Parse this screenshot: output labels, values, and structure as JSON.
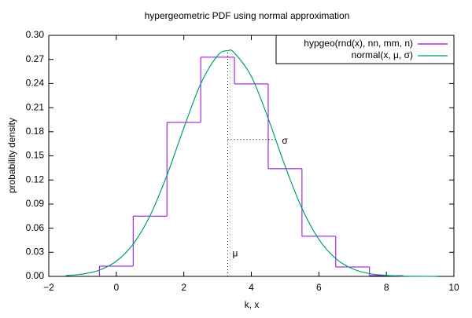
{
  "chart_data": {
    "type": "line",
    "title": "hypergeometric PDF using normal approximation",
    "x_label": "k, x",
    "y_label": "probability density",
    "xlim": [
      -2,
      10
    ],
    "xticks": [
      {
        "value": -2,
        "label": "−2"
      },
      0,
      2,
      4,
      6,
      8,
      10
    ],
    "ylim": [
      0,
      0.3
    ],
    "yticks": [
      {
        "value": 0,
        "label": "0.00"
      },
      {
        "value": 0.03,
        "label": "0.03"
      },
      {
        "value": 0.06,
        "label": "0.06"
      },
      {
        "value": 0.09,
        "label": "0.09"
      },
      {
        "value": 0.12,
        "label": "0.12"
      },
      {
        "value": 0.15,
        "label": "0.15"
      },
      {
        "value": 0.18,
        "label": "0.18"
      },
      {
        "value": 0.21,
        "label": "0.21"
      },
      {
        "value": 0.24,
        "label": "0.24"
      },
      {
        "value": 0.27,
        "label": "0.27"
      },
      {
        "value": 0.3,
        "label": "0.30"
      }
    ],
    "grid": false,
    "legend_position": "top-right",
    "series": [
      {
        "name": "hypgeo(rnd(x), nn, mm, n)",
        "color": "#9400d3",
        "style": "steps",
        "x": [
          0,
          1,
          2,
          3,
          4,
          5,
          6,
          7,
          8
        ],
        "values": [
          0.0127,
          0.075,
          0.1916,
          0.2727,
          0.2395,
          0.134,
          0.0499,
          0.0117,
          0.001
        ]
      },
      {
        "name": "normal(x, μ, σ)",
        "color": "#009e73",
        "style": "line",
        "x": [
          -1.5,
          -1,
          -0.5,
          0,
          0.5,
          1,
          1.5,
          2,
          2.5,
          3,
          3.3,
          3.5,
          4,
          4.5,
          5,
          5.5,
          6,
          6.5,
          7,
          7.5,
          8,
          8.5,
          9,
          9.5
        ],
        "values": [
          0.0009,
          0.0029,
          0.0078,
          0.0189,
          0.0402,
          0.0756,
          0.1258,
          0.1847,
          0.2397,
          0.2747,
          0.2809,
          0.2781,
          0.2488,
          0.1965,
          0.1372,
          0.0846,
          0.0461,
          0.0222,
          0.0094,
          0.0035,
          0.0012,
          0.0003,
          0.0001,
          0
        ]
      }
    ],
    "mu": 3.3,
    "mu_label": "μ",
    "sigma": 1.42,
    "sigma_label": "σ"
  }
}
